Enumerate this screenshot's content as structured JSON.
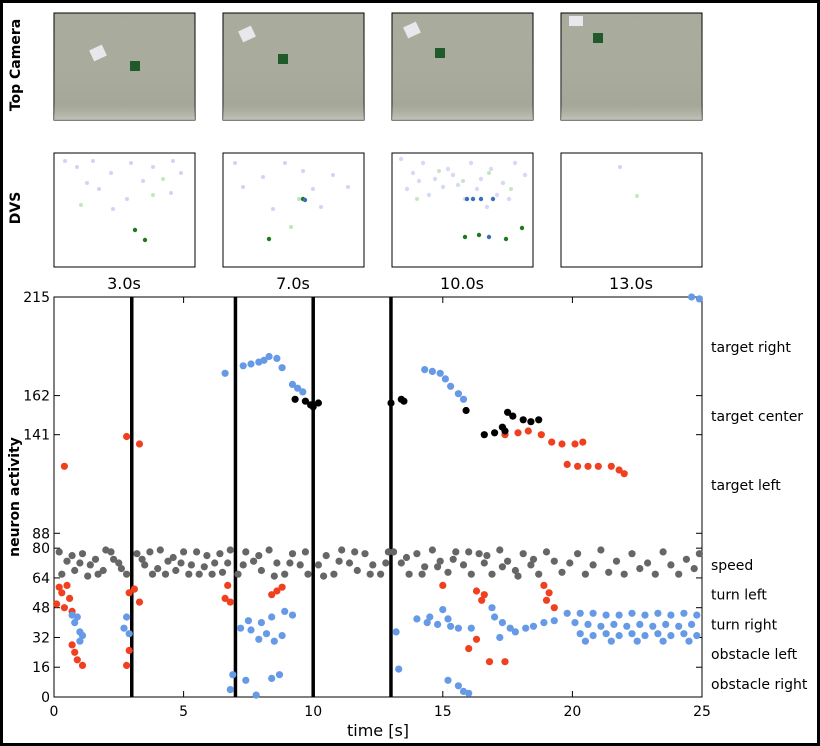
{
  "panel_rows": {
    "top_label": "Top Camera",
    "dvs_label": "DVS",
    "times": [
      "3.0s",
      "7.0s",
      "10.0s",
      "13.0s"
    ]
  },
  "chart_data": {
    "type": "scatter",
    "xlabel": "time [s]",
    "ylabel": "neuron activity",
    "xlim": [
      0,
      25
    ],
    "ylim": [
      0,
      215
    ],
    "xticks": [
      "0",
      "5",
      "10",
      "15",
      "20",
      "25"
    ],
    "yticks": [
      "0",
      "16",
      "32",
      "48",
      "64",
      "80",
      "88",
      "141",
      "162",
      "215"
    ],
    "vlines": [
      3.0,
      7.0,
      10.0,
      13.0
    ],
    "row_labels": [
      {
        "text": "target right",
        "y": 188
      },
      {
        "text": "target center",
        "y": 151
      },
      {
        "text": "target left",
        "y": 114
      },
      {
        "text": "speed",
        "y": 71
      },
      {
        "text": "turn left",
        "y": 55
      },
      {
        "text": "turn right",
        "y": 39
      },
      {
        "text": "obstacle left",
        "y": 23
      },
      {
        "text": "obstacle right",
        "y": 7
      }
    ],
    "colors": {
      "red": "#f04020",
      "blue": "#6699e6",
      "black": "#000000",
      "gray": "#666666"
    },
    "series": [
      {
        "color": "red",
        "points": [
          [
            0.4,
            124
          ],
          [
            2.8,
            140
          ],
          [
            3.3,
            136
          ],
          [
            17.4,
            141
          ],
          [
            17.9,
            142
          ],
          [
            18.3,
            143
          ],
          [
            18.8,
            141
          ],
          [
            19.2,
            137
          ],
          [
            19.6,
            136
          ],
          [
            20.1,
            136
          ],
          [
            20.4,
            137
          ],
          [
            19.8,
            125
          ],
          [
            20.2,
            124
          ],
          [
            20.6,
            124
          ],
          [
            21.0,
            124
          ],
          [
            21.5,
            124
          ],
          [
            21.8,
            122
          ],
          [
            22.0,
            120
          ],
          [
            0.2,
            59
          ],
          [
            0.5,
            60
          ],
          [
            0.3,
            56
          ],
          [
            0.6,
            53
          ],
          [
            0.1,
            50
          ],
          [
            0.4,
            48
          ],
          [
            0.7,
            46
          ],
          [
            2.9,
            56
          ],
          [
            3.1,
            58
          ],
          [
            3.3,
            51
          ],
          [
            6.7,
            60
          ],
          [
            6.6,
            53
          ],
          [
            6.8,
            51
          ],
          [
            8.6,
            57
          ],
          [
            8.8,
            59
          ],
          [
            8.4,
            55
          ],
          [
            15.0,
            60
          ],
          [
            16.3,
            57
          ],
          [
            16.6,
            55
          ],
          [
            16.5,
            52
          ],
          [
            18.9,
            60
          ],
          [
            19.1,
            56
          ],
          [
            19.0,
            52
          ],
          [
            19.3,
            48
          ],
          [
            0.7,
            28
          ],
          [
            0.8,
            24
          ],
          [
            0.9,
            20
          ],
          [
            1.1,
            17
          ],
          [
            2.8,
            17
          ],
          [
            2.9,
            25
          ],
          [
            16.0,
            26
          ],
          [
            16.3,
            31
          ],
          [
            16.8,
            19
          ],
          [
            17.4,
            19
          ]
        ]
      },
      {
        "color": "blue",
        "points": [
          [
            6.6,
            174
          ],
          [
            7.3,
            178
          ],
          [
            7.6,
            179
          ],
          [
            7.9,
            180
          ],
          [
            8.1,
            181
          ],
          [
            8.3,
            183
          ],
          [
            8.6,
            182
          ],
          [
            8.8,
            177
          ],
          [
            9.2,
            168
          ],
          [
            9.4,
            166
          ],
          [
            9.6,
            164
          ],
          [
            14.3,
            176
          ],
          [
            14.6,
            175
          ],
          [
            14.9,
            174
          ],
          [
            15.1,
            171
          ],
          [
            15.3,
            167
          ],
          [
            15.6,
            163
          ],
          [
            15.8,
            160
          ],
          [
            0.7,
            44
          ],
          [
            0.9,
            43
          ],
          [
            0.8,
            40
          ],
          [
            1.0,
            35
          ],
          [
            1.1,
            33
          ],
          [
            1.0,
            30
          ],
          [
            2.8,
            43
          ],
          [
            2.7,
            37
          ],
          [
            2.9,
            34
          ],
          [
            6.8,
            4
          ],
          [
            6.9,
            12
          ],
          [
            7.2,
            37
          ],
          [
            7.5,
            41
          ],
          [
            8.0,
            40
          ],
          [
            8.4,
            43
          ],
          [
            8.9,
            46
          ],
          [
            9.2,
            44
          ],
          [
            7.6,
            36
          ],
          [
            8.2,
            34
          ],
          [
            8.8,
            33
          ],
          [
            7.9,
            31
          ],
          [
            8.5,
            30
          ],
          [
            7.4,
            9
          ],
          [
            7.8,
            1
          ],
          [
            8.4,
            10
          ],
          [
            8.7,
            12
          ],
          [
            13.3,
            15
          ],
          [
            13.2,
            35
          ],
          [
            14.0,
            42
          ],
          [
            14.4,
            40
          ],
          [
            14.8,
            39
          ],
          [
            15.3,
            38
          ],
          [
            15.6,
            37
          ],
          [
            15.0,
            47
          ],
          [
            14.5,
            43
          ],
          [
            15.2,
            42
          ],
          [
            16.1,
            37
          ],
          [
            15.2,
            9
          ],
          [
            15.6,
            6
          ],
          [
            15.8,
            3
          ],
          [
            16.0,
            2
          ],
          [
            16.9,
            48
          ],
          [
            17.0,
            43
          ],
          [
            17.3,
            40
          ],
          [
            17.6,
            37
          ],
          [
            17.2,
            32
          ],
          [
            17.8,
            35
          ],
          [
            18.2,
            37
          ],
          [
            18.5,
            38
          ],
          [
            18.9,
            40
          ],
          [
            19.3,
            41
          ],
          [
            19.8,
            45
          ],
          [
            20.3,
            45
          ],
          [
            20.8,
            45
          ],
          [
            21.3,
            44
          ],
          [
            21.8,
            44
          ],
          [
            22.3,
            45
          ],
          [
            22.8,
            44
          ],
          [
            23.3,
            45
          ],
          [
            23.8,
            44
          ],
          [
            24.3,
            45
          ],
          [
            24.8,
            44
          ],
          [
            20.1,
            40
          ],
          [
            20.6,
            39
          ],
          [
            21.1,
            38
          ],
          [
            21.6,
            39
          ],
          [
            22.1,
            38
          ],
          [
            22.6,
            39
          ],
          [
            23.1,
            38
          ],
          [
            23.6,
            39
          ],
          [
            24.1,
            38
          ],
          [
            24.6,
            39
          ],
          [
            20.3,
            34
          ],
          [
            20.8,
            33
          ],
          [
            21.3,
            34
          ],
          [
            21.8,
            33
          ],
          [
            22.3,
            34
          ],
          [
            22.8,
            33
          ],
          [
            23.3,
            34
          ],
          [
            23.8,
            33
          ],
          [
            24.3,
            34
          ],
          [
            24.8,
            33
          ],
          [
            20.5,
            30
          ],
          [
            21.5,
            30
          ],
          [
            22.5,
            30
          ],
          [
            23.5,
            30
          ],
          [
            24.5,
            30
          ],
          [
            24.6,
            215
          ],
          [
            24.9,
            214
          ]
        ]
      },
      {
        "color": "black",
        "points": [
          [
            9.3,
            160
          ],
          [
            9.7,
            159
          ],
          [
            9.9,
            157
          ],
          [
            10.2,
            158
          ],
          [
            10.0,
            156
          ],
          [
            13.0,
            158
          ],
          [
            13.4,
            160
          ],
          [
            13.5,
            159
          ],
          [
            15.9,
            154
          ],
          [
            16.6,
            141
          ],
          [
            17.0,
            142
          ],
          [
            17.3,
            145
          ],
          [
            17.5,
            153
          ],
          [
            17.7,
            151
          ],
          [
            18.1,
            149
          ],
          [
            18.4,
            148
          ],
          [
            18.7,
            149
          ],
          [
            17.4,
            143
          ]
        ]
      },
      {
        "color": "gray",
        "points": [
          [
            0.2,
            78
          ],
          [
            0.5,
            73
          ],
          [
            0.8,
            68
          ],
          [
            1.1,
            77
          ],
          [
            1.4,
            71
          ],
          [
            1.7,
            66
          ],
          [
            2.0,
            79
          ],
          [
            2.3,
            74
          ],
          [
            2.6,
            69
          ],
          [
            0.3,
            66
          ],
          [
            0.7,
            76
          ],
          [
            1.0,
            72
          ],
          [
            1.3,
            65
          ],
          [
            1.6,
            74
          ],
          [
            1.9,
            68
          ],
          [
            2.2,
            78
          ],
          [
            2.5,
            72
          ],
          [
            2.8,
            66
          ],
          [
            3.2,
            77
          ],
          [
            3.5,
            71
          ],
          [
            3.8,
            66
          ],
          [
            4.1,
            79
          ],
          [
            4.4,
            73
          ],
          [
            4.7,
            68
          ],
          [
            5.0,
            78
          ],
          [
            5.3,
            71
          ],
          [
            5.6,
            66
          ],
          [
            5.9,
            76
          ],
          [
            6.2,
            72
          ],
          [
            6.5,
            67
          ],
          [
            6.8,
            79
          ],
          [
            3.4,
            74
          ],
          [
            3.7,
            78
          ],
          [
            4.0,
            69
          ],
          [
            4.3,
            66
          ],
          [
            4.6,
            75
          ],
          [
            4.9,
            72
          ],
          [
            5.2,
            66
          ],
          [
            5.5,
            78
          ],
          [
            5.8,
            70
          ],
          [
            6.1,
            66
          ],
          [
            6.4,
            77
          ],
          [
            6.7,
            72
          ],
          [
            7.1,
            66
          ],
          [
            7.4,
            78
          ],
          [
            7.7,
            73
          ],
          [
            8.0,
            68
          ],
          [
            8.3,
            79
          ],
          [
            8.6,
            72
          ],
          [
            8.9,
            66
          ],
          [
            9.2,
            77
          ],
          [
            9.5,
            71
          ],
          [
            9.8,
            66
          ],
          [
            7.3,
            71
          ],
          [
            7.9,
            76
          ],
          [
            8.5,
            65
          ],
          [
            9.1,
            72
          ],
          [
            9.7,
            78
          ],
          [
            10.2,
            71
          ],
          [
            10.5,
            76
          ],
          [
            10.8,
            66
          ],
          [
            11.1,
            79
          ],
          [
            11.4,
            72
          ],
          [
            11.7,
            68
          ],
          [
            12.0,
            77
          ],
          [
            12.3,
            71
          ],
          [
            12.6,
            66
          ],
          [
            12.9,
            78
          ],
          [
            10.4,
            65
          ],
          [
            11.0,
            73
          ],
          [
            11.6,
            78
          ],
          [
            12.2,
            66
          ],
          [
            12.8,
            72
          ],
          [
            13.1,
            78
          ],
          [
            13.4,
            72
          ],
          [
            13.7,
            66
          ],
          [
            14.0,
            77
          ],
          [
            14.3,
            70
          ],
          [
            14.6,
            79
          ],
          [
            14.9,
            73
          ],
          [
            15.2,
            67
          ],
          [
            15.5,
            78
          ],
          [
            15.8,
            71
          ],
          [
            16.1,
            66
          ],
          [
            16.4,
            77
          ],
          [
            13.6,
            75
          ],
          [
            14.2,
            66
          ],
          [
            14.8,
            70
          ],
          [
            15.4,
            74
          ],
          [
            16.0,
            78
          ],
          [
            16.6,
            72
          ],
          [
            16.9,
            66
          ],
          [
            17.2,
            79
          ],
          [
            17.5,
            73
          ],
          [
            17.8,
            68
          ],
          [
            18.1,
            77
          ],
          [
            18.4,
            71
          ],
          [
            18.7,
            66
          ],
          [
            19.0,
            78
          ],
          [
            19.3,
            73
          ],
          [
            16.7,
            76
          ],
          [
            17.3,
            70
          ],
          [
            17.9,
            65
          ],
          [
            18.5,
            74
          ],
          [
            19.6,
            67
          ],
          [
            19.9,
            72
          ],
          [
            20.2,
            77
          ],
          [
            20.5,
            66
          ],
          [
            20.8,
            71
          ],
          [
            21.1,
            79
          ],
          [
            21.4,
            67
          ],
          [
            21.7,
            73
          ],
          [
            22.0,
            66
          ],
          [
            22.3,
            77
          ],
          [
            22.6,
            69
          ],
          [
            22.9,
            72
          ],
          [
            23.2,
            66
          ],
          [
            23.5,
            78
          ],
          [
            23.8,
            71
          ],
          [
            24.1,
            66
          ],
          [
            24.4,
            74
          ],
          [
            24.7,
            69
          ],
          [
            24.9,
            77
          ]
        ]
      }
    ]
  }
}
